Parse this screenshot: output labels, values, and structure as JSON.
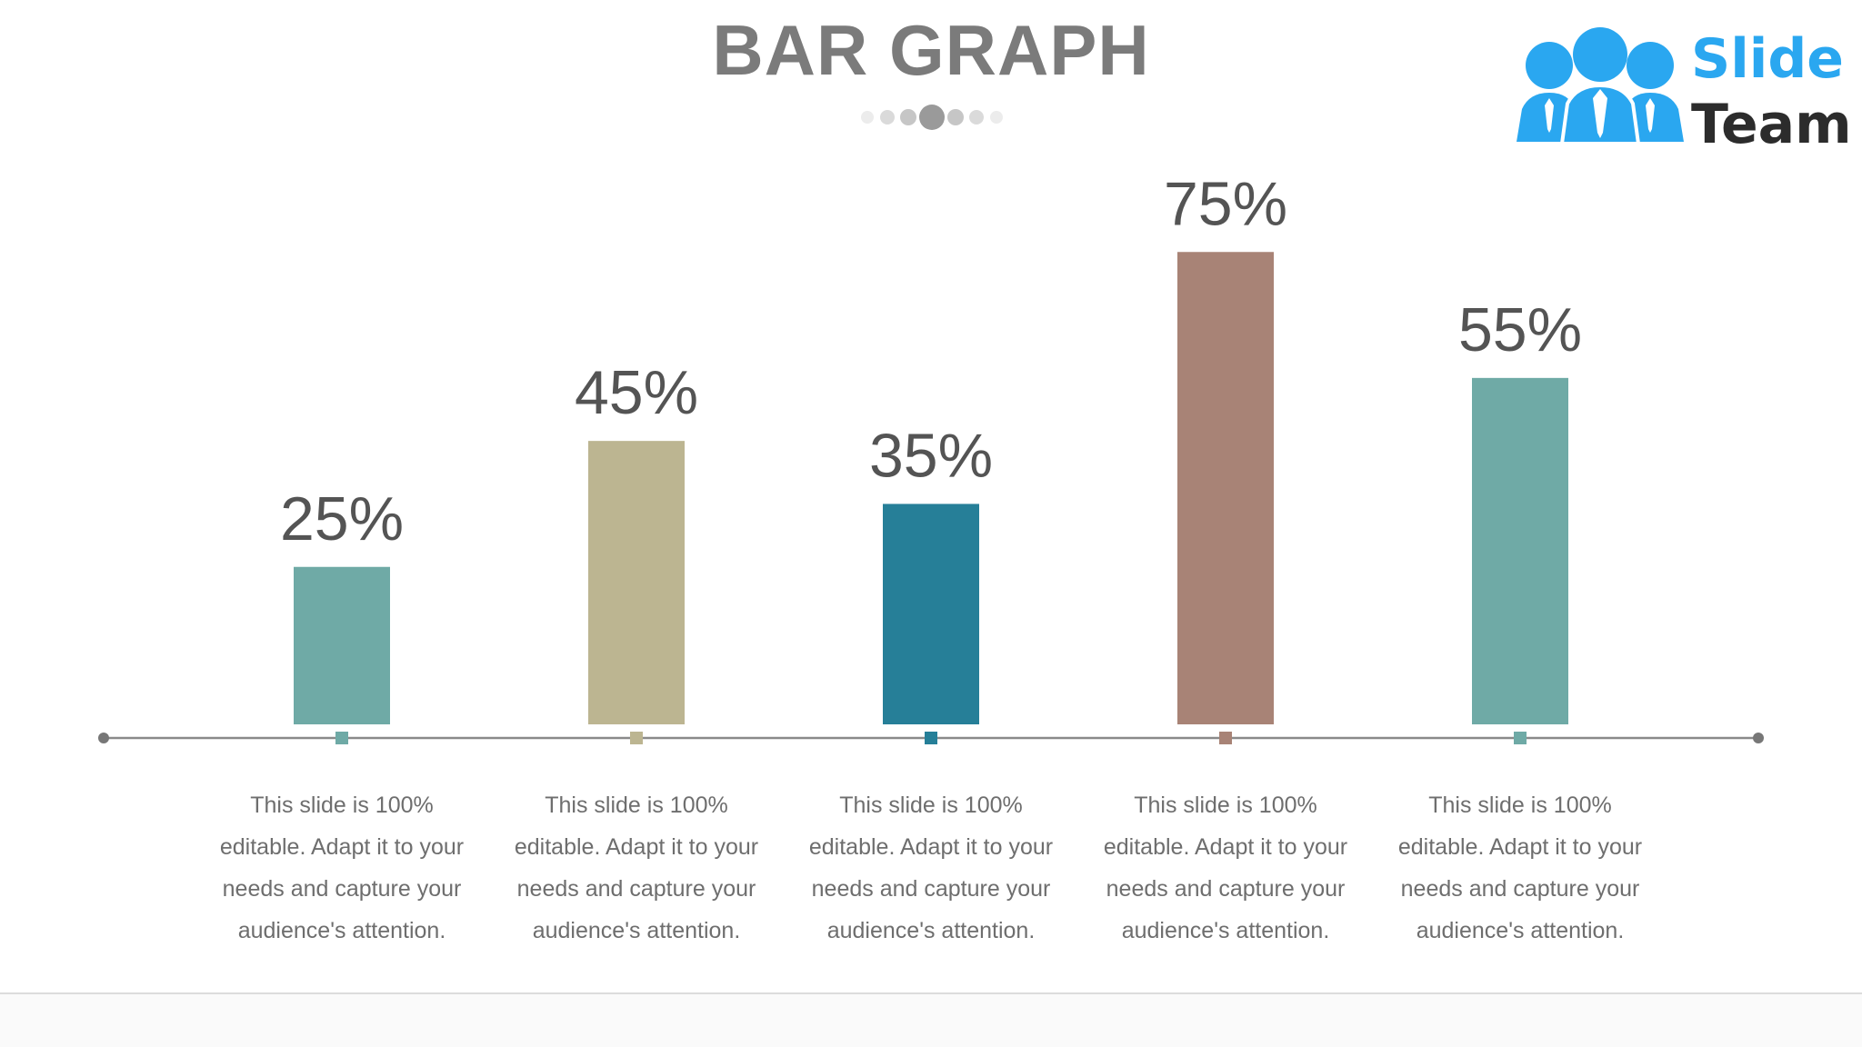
{
  "slide": {
    "title": "BAR GRAPH",
    "logo": {
      "word1": "Slide",
      "word2": "Team"
    },
    "icons": {
      "logo_graphic": "people-group-icon",
      "decoration": "dots-divider-icon"
    }
  },
  "chart_data": {
    "type": "bar",
    "title": "BAR GRAPH",
    "categories": [
      "",
      "",
      "",
      "",
      ""
    ],
    "values": [
      25,
      45,
      35,
      75,
      55
    ],
    "value_labels": [
      "25%",
      "45%",
      "35%",
      "75%",
      "55%"
    ],
    "colors": [
      "#6faaa6",
      "#bcb591",
      "#267f98",
      "#a88376",
      "#6faaa6"
    ],
    "descriptions": [
      [
        "This slide is 100%",
        "editable. Adapt it to your",
        "needs and capture your",
        "audience's attention."
      ],
      [
        "This slide is 100%",
        "editable. Adapt it to your",
        "needs and capture your",
        "audience's attention."
      ],
      [
        "This slide is 100%",
        "editable. Adapt it to your",
        "needs and capture your",
        "audience's attention."
      ],
      [
        "This slide is 100%",
        "editable. Adapt it to your",
        "needs and capture your",
        "audience's attention."
      ],
      [
        "This slide is 100%",
        "editable. Adapt it to your",
        "needs and capture your",
        "audience's attention."
      ]
    ],
    "ylim": [
      0,
      100
    ],
    "grid": false,
    "legend": "none",
    "xlabel": "",
    "ylabel": ""
  },
  "colors": {
    "title": "#7b7b7b",
    "value_label": "#545454",
    "description": "#6e6e6e",
    "axis": "#8a8a8a",
    "logo_blue": "#2aa7f0",
    "logo_dark": "#2c2c2c"
  }
}
